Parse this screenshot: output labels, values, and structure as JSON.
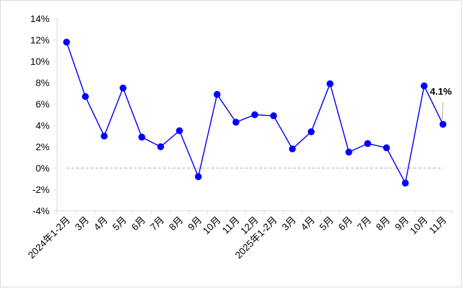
{
  "chart_data": {
    "type": "line",
    "categories": [
      "2024年1-2月",
      "3月",
      "4月",
      "5月",
      "6月",
      "7月",
      "8月",
      "9月",
      "10月",
      "11月",
      "12月",
      "2025年1-2月",
      "3月",
      "4月",
      "5月",
      "6月",
      "7月",
      "8月",
      "9月",
      "10月",
      "11月"
    ],
    "series": [
      {
        "values": [
          11.8,
          6.7,
          3.0,
          7.5,
          2.9,
          2.0,
          3.5,
          -0.8,
          6.9,
          4.3,
          5.0,
          4.9,
          1.8,
          3.4,
          7.9,
          1.5,
          2.3,
          1.9,
          -1.4,
          7.7,
          4.1
        ],
        "color": "#0000ff"
      }
    ],
    "ylim": [
      -4,
      14
    ],
    "yticks": [
      "-4%",
      "-2%",
      "0%",
      "2%",
      "4%",
      "6%",
      "8%",
      "10%",
      "12%",
      "14%"
    ],
    "ytick_values": [
      -4,
      -2,
      0,
      2,
      4,
      6,
      8,
      10,
      12,
      14
    ],
    "zero_line": {
      "style": "dashed",
      "color": "#a6a6a6"
    },
    "annotation": {
      "text": "4.1%",
      "category_index": 20
    },
    "grid": false,
    "legend": "none",
    "title": "",
    "xlabel": "",
    "ylabel": ""
  }
}
